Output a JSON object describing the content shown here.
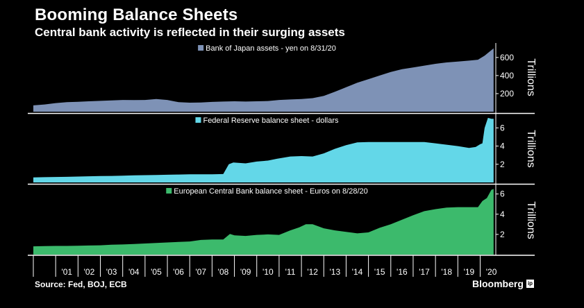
{
  "header": {
    "title": "Booming Balance Sheets",
    "subtitle": "Central bank activity is reflected in their surging assets"
  },
  "footer": {
    "source": "Source: Fed, BOJ, ECB",
    "brand": "Bloomberg",
    "brand_mark": "ip"
  },
  "colors": {
    "boj": "#7e92b6",
    "fed": "#63d7e8",
    "ecb": "#3cba6c",
    "background": "#000000",
    "axis": "#ffffff"
  },
  "chart_data": [
    {
      "type": "area",
      "legend": "Bank of Japan assets - yen on 8/31/20",
      "ylabel": "Trillions",
      "yticks": [
        200,
        400,
        600
      ],
      "ylim": [
        0,
        760
      ],
      "xlim": [
        2000.0,
        2020.7
      ],
      "color": "boj",
      "x": [
        2000.0,
        2000.5,
        2001.0,
        2001.5,
        2002.0,
        2002.5,
        2003.0,
        2003.5,
        2004.0,
        2004.5,
        2005.0,
        2005.5,
        2006.0,
        2006.5,
        2007.0,
        2007.5,
        2008.0,
        2008.5,
        2009.0,
        2009.5,
        2010.0,
        2010.5,
        2011.0,
        2011.5,
        2012.0,
        2012.5,
        2013.0,
        2013.5,
        2014.0,
        2014.5,
        2015.0,
        2015.5,
        2016.0,
        2016.5,
        2017.0,
        2017.5,
        2018.0,
        2018.5,
        2019.0,
        2019.5,
        2019.9,
        2020.0,
        2020.2,
        2020.4,
        2020.6
      ],
      "values": [
        70,
        80,
        95,
        105,
        110,
        115,
        120,
        125,
        130,
        128,
        130,
        140,
        130,
        105,
        100,
        102,
        108,
        112,
        115,
        112,
        115,
        118,
        130,
        135,
        140,
        150,
        175,
        220,
        270,
        320,
        360,
        400,
        440,
        470,
        490,
        510,
        530,
        545,
        555,
        565,
        575,
        590,
        620,
        660,
        700
      ]
    },
    {
      "type": "area",
      "legend": "Federal Reserve balance sheet - dollars",
      "ylabel": "Trillions",
      "yticks": [
        2,
        4,
        6
      ],
      "ylim": [
        0,
        7.4
      ],
      "xlim": [
        2000.0,
        2020.7
      ],
      "color": "fed",
      "x": [
        2000.0,
        2000.5,
        2001.0,
        2001.5,
        2002.0,
        2002.5,
        2003.0,
        2003.5,
        2004.0,
        2004.5,
        2005.0,
        2005.5,
        2006.0,
        2006.5,
        2007.0,
        2007.5,
        2008.0,
        2008.5,
        2008.75,
        2008.95,
        2009.5,
        2010.0,
        2010.5,
        2010.9,
        2011.5,
        2012.0,
        2012.5,
        2013.0,
        2013.5,
        2014.0,
        2014.5,
        2015.0,
        2015.5,
        2016.0,
        2016.5,
        2017.0,
        2017.5,
        2018.0,
        2018.5,
        2019.0,
        2019.5,
        2019.8,
        2020.0,
        2020.1,
        2020.2,
        2020.35,
        2020.5,
        2020.6
      ],
      "values": [
        0.55,
        0.58,
        0.6,
        0.62,
        0.65,
        0.68,
        0.7,
        0.72,
        0.75,
        0.78,
        0.8,
        0.82,
        0.85,
        0.87,
        0.89,
        0.9,
        0.9,
        0.92,
        2.0,
        2.2,
        2.1,
        2.3,
        2.4,
        2.6,
        2.85,
        2.9,
        2.85,
        3.2,
        3.7,
        4.1,
        4.4,
        4.45,
        4.45,
        4.45,
        4.45,
        4.45,
        4.45,
        4.3,
        4.15,
        4.0,
        3.8,
        3.9,
        4.2,
        4.3,
        6.0,
        7.1,
        7.0,
        7.0
      ]
    },
    {
      "type": "area",
      "legend": "European Central Bank balance sheet - Euros on 8/28/20",
      "ylabel": "Trillions",
      "yticks": [
        2,
        4,
        6
      ],
      "ylim": [
        0,
        6.8
      ],
      "xlim": [
        2000.0,
        2020.7
      ],
      "color": "ecb",
      "x": [
        2000.0,
        2000.5,
        2001.0,
        2001.5,
        2002.0,
        2002.5,
        2003.0,
        2003.5,
        2004.0,
        2004.5,
        2005.0,
        2005.5,
        2006.0,
        2006.5,
        2007.0,
        2007.5,
        2008.0,
        2008.5,
        2008.8,
        2009.0,
        2009.5,
        2010.0,
        2010.5,
        2011.0,
        2011.5,
        2011.9,
        2012.2,
        2012.5,
        2013.0,
        2013.5,
        2014.0,
        2014.5,
        2015.0,
        2015.5,
        2016.0,
        2016.5,
        2017.0,
        2017.5,
        2018.0,
        2018.5,
        2019.0,
        2019.5,
        2019.9,
        2020.1,
        2020.3,
        2020.5,
        2020.6
      ],
      "values": [
        0.82,
        0.84,
        0.86,
        0.86,
        0.88,
        0.9,
        0.92,
        0.98,
        1.0,
        1.05,
        1.1,
        1.15,
        1.2,
        1.25,
        1.3,
        1.45,
        1.5,
        1.5,
        2.05,
        1.9,
        1.85,
        1.95,
        2.0,
        1.95,
        2.4,
        2.7,
        3.0,
        3.0,
        2.6,
        2.4,
        2.25,
        2.1,
        2.2,
        2.65,
        3.0,
        3.45,
        3.9,
        4.3,
        4.5,
        4.65,
        4.7,
        4.7,
        4.7,
        5.3,
        5.6,
        6.4,
        6.5
      ]
    }
  ],
  "x_axis": {
    "ticks": [
      "'01",
      "'02",
      "'03",
      "'04",
      "'05",
      "'06",
      "'07",
      "'08",
      "'09",
      "'10",
      "'11",
      "'12",
      "'13",
      "'14",
      "'15",
      "'16",
      "'17",
      "'18",
      "'19",
      "'20"
    ]
  }
}
